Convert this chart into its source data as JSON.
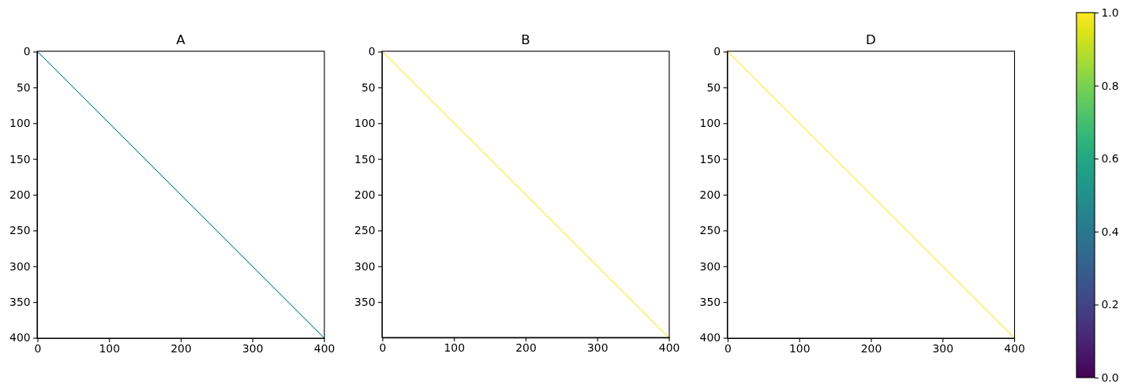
{
  "chart_data": [
    {
      "type": "line",
      "title": "A",
      "xlim": [
        -0.5,
        400.5
      ],
      "ylim": [
        400.5,
        -0.5
      ],
      "xticks": [
        0,
        100,
        200,
        300,
        400
      ],
      "yticks": [
        0,
        50,
        100,
        150,
        200,
        250,
        300,
        350,
        400
      ],
      "x": [
        0,
        400
      ],
      "series": [
        {
          "color": "#21918c",
          "values": [
            0,
            400
          ]
        }
      ]
    },
    {
      "type": "line",
      "title": "B",
      "xlim": [
        -0.5,
        400.5
      ],
      "ylim": [
        399.5,
        -0.5
      ],
      "xticks": [
        0,
        100,
        200,
        300,
        400
      ],
      "yticks": [
        0,
        50,
        100,
        150,
        200,
        250,
        300,
        350
      ],
      "x": [
        0,
        399
      ],
      "series": [
        {
          "color": "#fde725",
          "values": [
            0,
            399
          ]
        }
      ]
    },
    {
      "type": "line",
      "title": "D",
      "xlim": [
        -0.5,
        400.5
      ],
      "ylim": [
        400.5,
        -0.5
      ],
      "xticks": [
        0,
        100,
        200,
        300,
        400
      ],
      "yticks": [
        0,
        50,
        100,
        150,
        200,
        250,
        300,
        350,
        400
      ],
      "x": [
        0,
        400
      ],
      "series": [
        {
          "color": "#fde725",
          "values": [
            0,
            400
          ]
        }
      ],
      "clim": [
        0,
        1
      ],
      "cticks": [
        {
          "value": 0,
          "label": "0.0"
        },
        0.2,
        0.4,
        0.6,
        0.8,
        {
          "value": 1,
          "label": "1.0"
        }
      ]
    }
  ]
}
